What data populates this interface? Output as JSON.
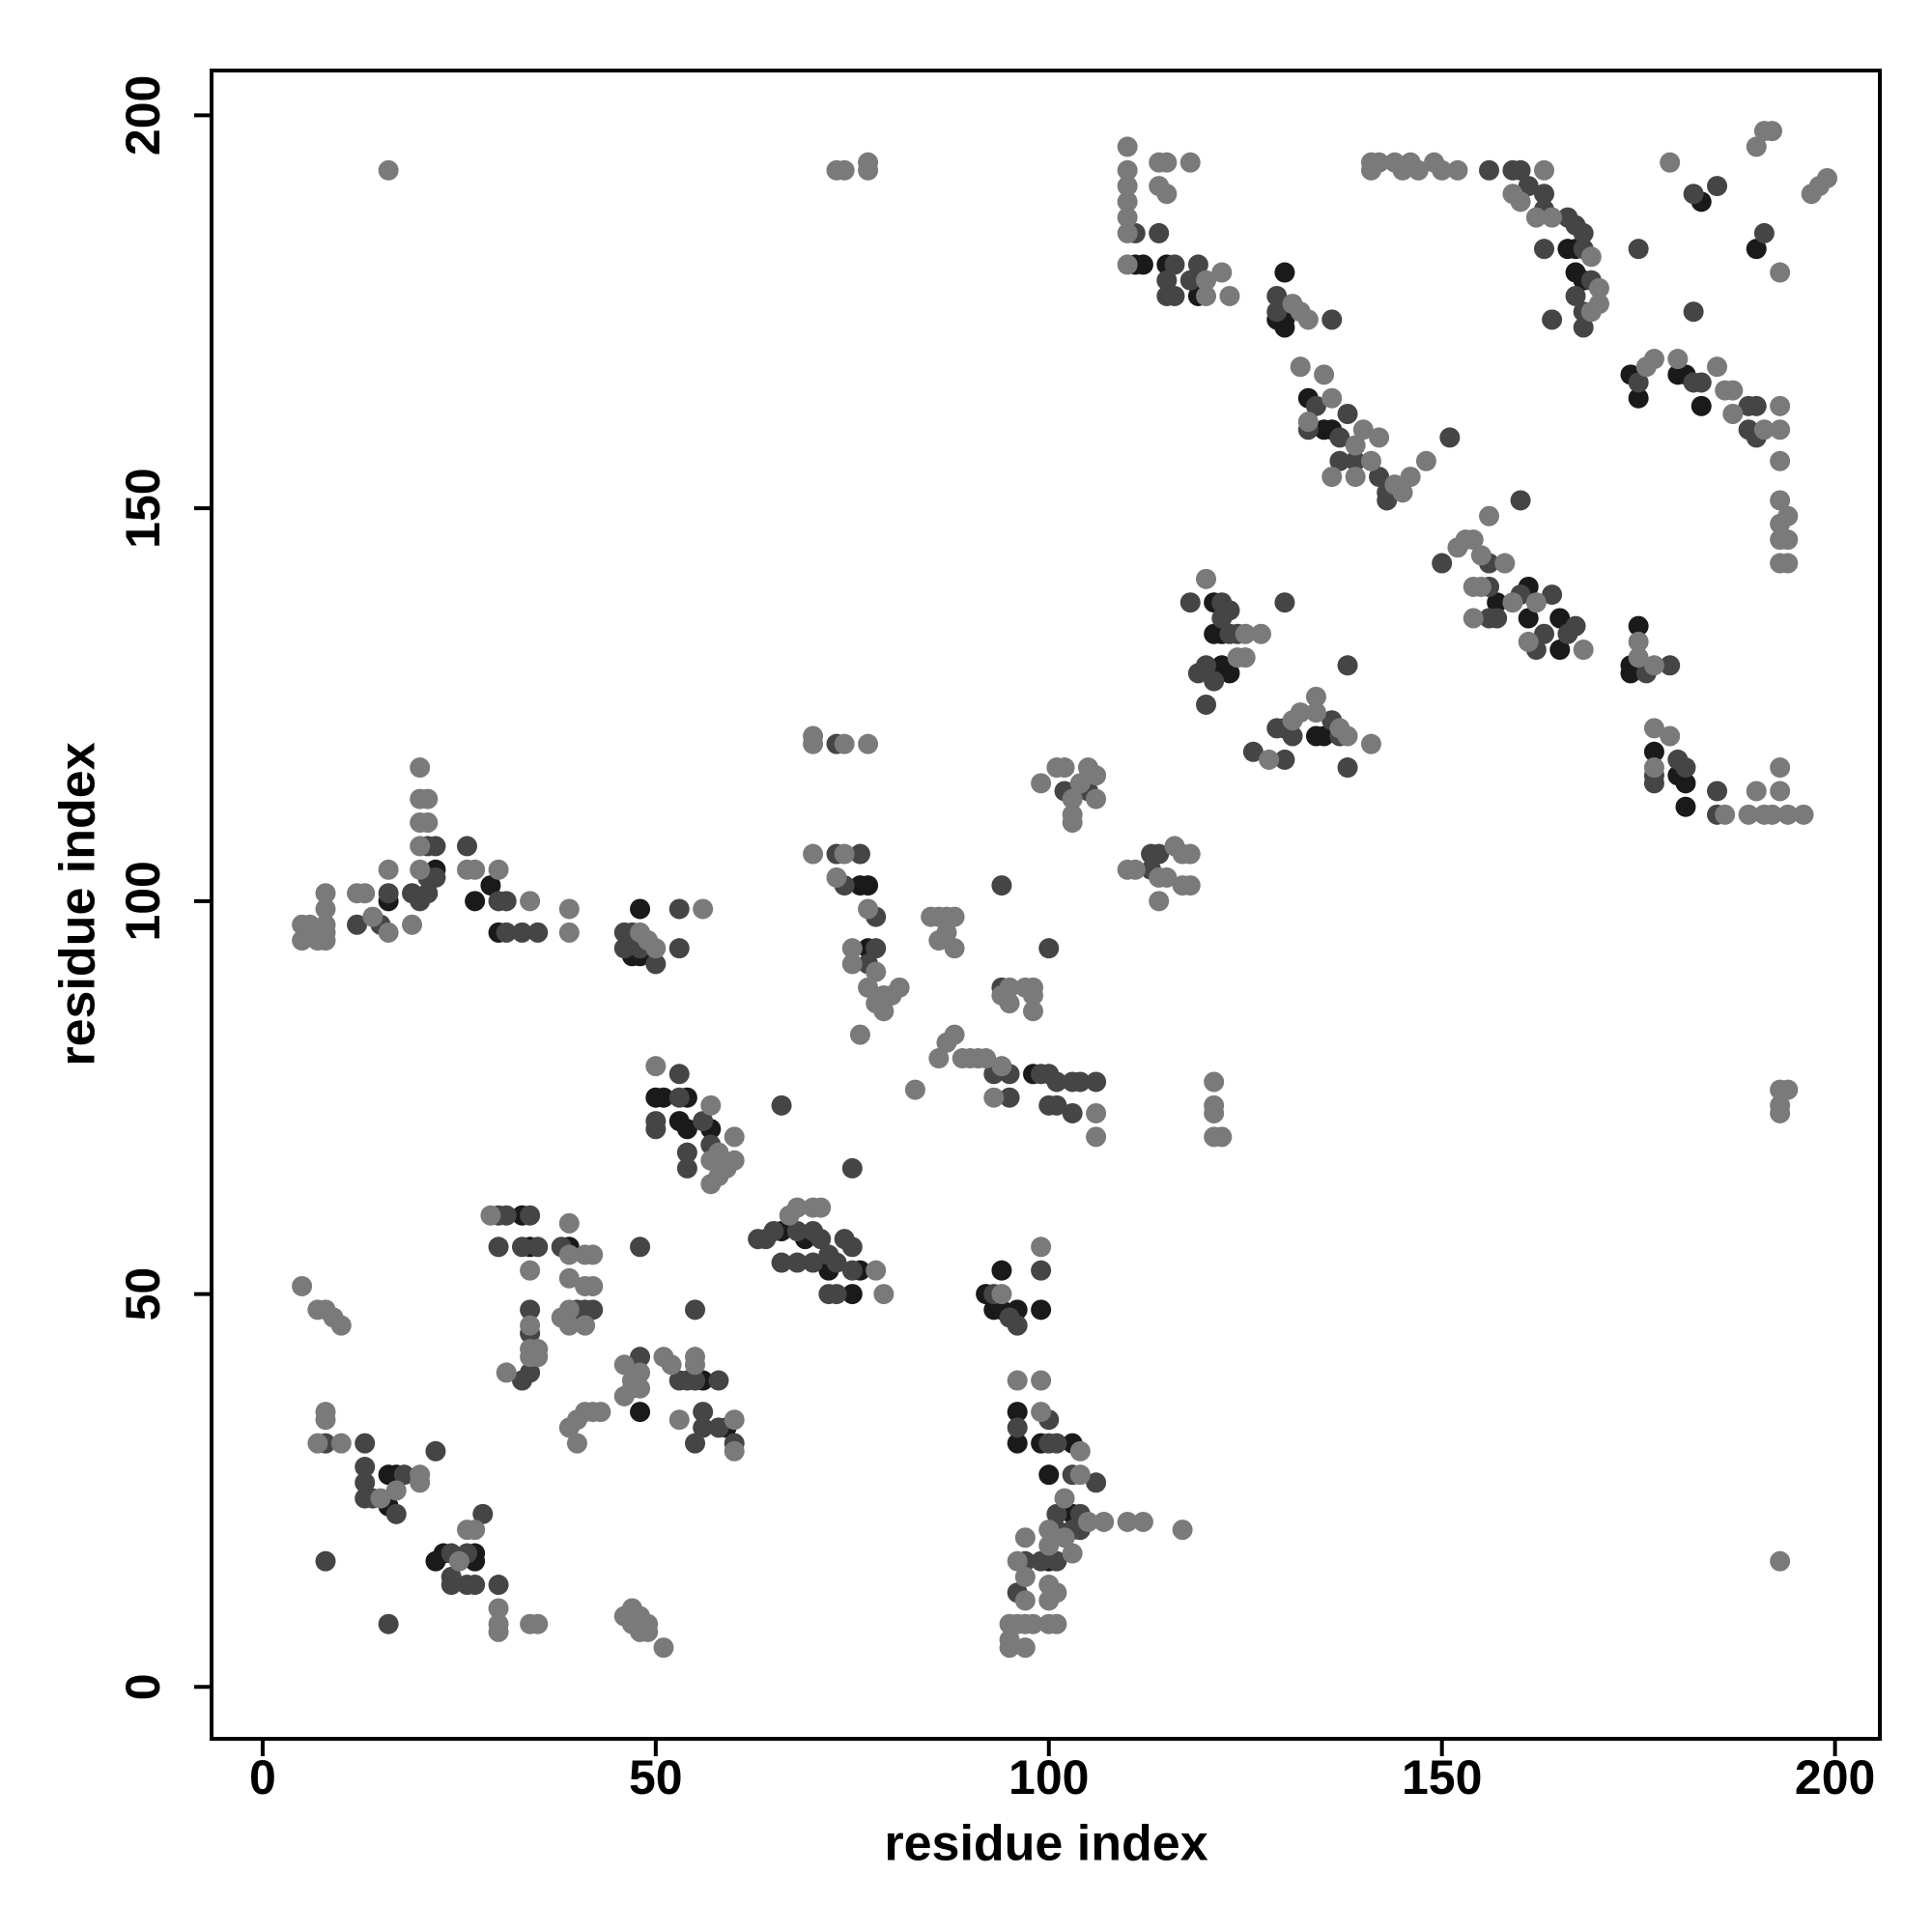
{
  "chart_data": {
    "type": "scatter",
    "x_label": "residue index",
    "y_label": "residue index",
    "xlim": [
      -6.5,
      205.7
    ],
    "ylim": [
      -6.6,
      205.7
    ],
    "xticks": [
      0,
      50,
      100,
      150,
      200
    ],
    "yticks": [
      0,
      50,
      100,
      150,
      200
    ],
    "grid": false,
    "series": [
      {
        "color": "#1a1a1a",
        "x": [
          111,
          112,
          115,
          119,
          130,
          129,
          130,
          130,
          133,
          135,
          136,
          166,
          167,
          167,
          168,
          183,
          190,
          174,
          175,
          180,
          181,
          183,
          157,
          161,
          161,
          165,
          165,
          174,
          175,
          174,
          177,
          180,
          181,
          181,
          121,
          121,
          122,
          122,
          123,
          130,
          134,
          135,
          76,
          77,
          77,
          98,
          50,
          51,
          53,
          54,
          54,
          57,
          66,
          69,
          72,
          76,
          75,
          92,
          93,
          94,
          96,
          94,
          99,
          96,
          96,
          99,
          103,
          100,
          103,
          100,
          22,
          29,
          27,
          30,
          16,
          47,
          48,
          48,
          33,
          34,
          39,
          48,
          56,
          59,
          16,
          17,
          16,
          22,
          23,
          27,
          27
        ],
        "values": [
          181,
          181,
          181,
          177,
          180,
          174,
          174,
          173,
          164,
          160,
          160,
          183,
          183,
          180,
          179,
          189,
          183,
          167,
          164,
          167,
          167,
          163,
          138,
          140,
          136,
          136,
          132,
          130,
          135,
          129,
          119,
          116,
          115,
          112,
          138,
          134,
          134,
          130,
          129,
          122,
          121,
          121,
          102,
          102,
          94,
          78,
          75,
          75,
          72,
          75,
          71,
          71,
          58,
          57,
          53,
          53,
          50,
          50,
          48,
          48,
          48,
          53,
          48,
          35,
          31,
          31,
          31,
          27,
          22,
          16,
          104,
          102,
          100,
          96,
          100,
          93,
          93,
          99,
          60,
          56,
          56,
          35,
          39,
          33,
          27,
          27,
          23,
          16,
          17,
          17,
          16
        ]
      },
      {
        "color": "#454545",
        "x": [
          111,
          114,
          116,
          115,
          116,
          115,
          118,
          119,
          129,
          129,
          136,
          133,
          134,
          137,
          137,
          138,
          139,
          142,
          143,
          143,
          151,
          156,
          159,
          160,
          161,
          163,
          163,
          166,
          167,
          168,
          168,
          169,
          167,
          168,
          168,
          163,
          164,
          175,
          182,
          185,
          191,
          182,
          175,
          182,
          183,
          189,
          190,
          189,
          190,
          150,
          156,
          156,
          160,
          163,
          164,
          166,
          167,
          157,
          156,
          160,
          162,
          176,
          179,
          177,
          177,
          180,
          181,
          185,
          185,
          118,
          122,
          122,
          123,
          123,
          124,
          120,
          121,
          119,
          120,
          130,
          126,
          129,
          130,
          131,
          136,
          137,
          138,
          138,
          102,
          105,
          113,
          113,
          114,
          73,
          76,
          74,
          78,
          78,
          77,
          73,
          94,
          94,
          100,
          93,
          95,
          99,
          100,
          101,
          103,
          104,
          106,
          95,
          100,
          101,
          103,
          50,
          50,
          53,
          53,
          54,
          54,
          56,
          57,
          66,
          75,
          63,
          64,
          65,
          68,
          70,
          71,
          72,
          73,
          74,
          75,
          75,
          72,
          73,
          66,
          68,
          70,
          93,
          95,
          96,
          99,
          96,
          100,
          100,
          101,
          103,
          106,
          104,
          101,
          101,
          103,
          104,
          97,
          99,
          101,
          96,
          21,
          22,
          21,
          19,
          20,
          21,
          22,
          26,
          30,
          31,
          31,
          33,
          35,
          16,
          15,
          12,
          46,
          47,
          46,
          48,
          50,
          53,
          53,
          30,
          31,
          34,
          30,
          33,
          35,
          38,
          40,
          41,
          42,
          34,
          34,
          34,
          33,
          48,
          53,
          54,
          55,
          56,
          56,
          55,
          58,
          60,
          58,
          55,
          48,
          48,
          8,
          13,
          13,
          13,
          13,
          14,
          18,
          17,
          22,
          8,
          24,
          24,
          24,
          26,
          28,
          26,
          27,
          30,
          16
        ],
        "values": [
          185,
          185,
          181,
          179,
          177,
          177,
          179,
          181,
          177,
          175,
          174,
          160,
          163,
          159,
          156,
          162,
          156,
          154,
          152,
          151,
          159,
          193,
          193,
          193,
          191,
          190,
          188,
          187,
          186,
          185,
          183,
          179,
          177,
          175,
          173,
          183,
          174,
          183,
          190,
          191,
          185,
          175,
          166,
          166,
          166,
          163,
          163,
          160,
          159,
          143,
          143,
          140,
          139,
          134,
          139,
          134,
          135,
          136,
          136,
          151,
          132,
          129,
          130,
          115,
          116,
          118,
          117,
          114,
          111,
          138,
          138,
          136,
          137,
          134,
          134,
          130,
          128,
          129,
          125,
          138,
          119,
          122,
          118,
          121,
          123,
          121,
          117,
          130,
          114,
          114,
          106,
          104,
          106,
          106,
          106,
          102,
          98,
          94,
          92,
          120,
          102,
          89,
          94,
          78,
          78,
          78,
          78,
          77,
          77,
          77,
          77,
          75,
          74,
          74,
          73,
          72,
          71,
          78,
          75,
          68,
          66,
          72,
          69,
          74,
          66,
          57,
          57,
          58,
          58,
          58,
          57,
          55,
          54,
          57,
          56,
          53,
          50,
          50,
          54,
          54,
          54,
          50,
          47,
          46,
          53,
          33,
          34,
          31,
          31,
          27,
          26,
          22,
          22,
          20,
          20,
          20,
          16,
          16,
          16,
          12,
          107,
          107,
          103,
          101,
          100,
          101,
          103,
          107,
          100,
          100,
          96,
          96,
          96,
          101,
          97,
          97,
          96,
          96,
          94,
          94,
          92,
          99,
          94,
          60,
          60,
          60,
          56,
          56,
          56,
          56,
          48,
          48,
          48,
          48,
          45,
          40,
          39,
          42,
          39,
          39,
          39,
          35,
          33,
          31,
          39,
          31,
          33,
          48,
          56,
          8,
          31,
          31,
          28,
          26,
          24,
          24,
          27,
          22,
          30,
          16,
          17,
          14,
          13,
          17,
          22,
          13,
          13,
          13,
          8
        ]
      },
      {
        "color": "#7a7a7a",
        "x": [
          16,
          73,
          74,
          77,
          77,
          110,
          110,
          110,
          110,
          110,
          110,
          110,
          114,
          115,
          114,
          115,
          118,
          120,
          120,
          122,
          123,
          131,
          132,
          133,
          132,
          133,
          135,
          136,
          139,
          140,
          136,
          139,
          141,
          142,
          144,
          145,
          146,
          148,
          141,
          142,
          141,
          144,
          145,
          146,
          147,
          149,
          150,
          152,
          163,
          159,
          160,
          162,
          164,
          169,
          170,
          169,
          170,
          179,
          190,
          191,
          192,
          197,
          198,
          199,
          193,
          176,
          177,
          180,
          186,
          187,
          187,
          191,
          193,
          193,
          193,
          193,
          193,
          194,
          193,
          194,
          193,
          194,
          185,
          152,
          153,
          154,
          155,
          154,
          156,
          158,
          159,
          162,
          168,
          161,
          154,
          155,
          175,
          175,
          177,
          177,
          177,
          179,
          186,
          189,
          190,
          191,
          192,
          193,
          193,
          194,
          196,
          193,
          194,
          193,
          193,
          193,
          120,
          125,
          127,
          124,
          125,
          128,
          131,
          132,
          134,
          134,
          138,
          141,
          137,
          99,
          101,
          102,
          103,
          103,
          103,
          104,
          105,
          106,
          106,
          110,
          111,
          114,
          115,
          116,
          117,
          117,
          118,
          118,
          114,
          70,
          74,
          73,
          77,
          75,
          75,
          78,
          77,
          79,
          78,
          79,
          80,
          81,
          76,
          70,
          70,
          74,
          77,
          85,
          86,
          87,
          88,
          86,
          87,
          88,
          95,
          94,
          95,
          97,
          98,
          98,
          98,
          86,
          87,
          88,
          89,
          90,
          91,
          92,
          94,
          93,
          106,
          106,
          83,
          121,
          121,
          121,
          121,
          122,
          50,
          57,
          57,
          57,
          58,
          58,
          59,
          60,
          60,
          67,
          68,
          70,
          71,
          78,
          79,
          94,
          99,
          96,
          99,
          99,
          104,
          104,
          102,
          100,
          100,
          102,
          105,
          107,
          110,
          112,
          117,
          97,
          96,
          103,
          97,
          100,
          101,
          100,
          97,
          95,
          96,
          97,
          98,
          100,
          101,
          95,
          95,
          97,
          20,
          20,
          21,
          20,
          21,
          20,
          20,
          26,
          27,
          30,
          34,
          39,
          39,
          19,
          16,
          16,
          13,
          12,
          8,
          8,
          8,
          8,
          7,
          7,
          6,
          5,
          5,
          8,
          14,
          48,
          49,
          50,
          56,
          29,
          34,
          39,
          39,
          41,
          42,
          39,
          41,
          42,
          39,
          38,
          39,
          41,
          34,
          35,
          34,
          35,
          31,
          40,
          41,
          42,
          43,
          39,
          40,
          34,
          46,
          47,
          48,
          47,
          48,
          46,
          51,
          52,
          55,
          55,
          53,
          60,
          60,
          47,
          48,
          49,
          48,
          49,
          51,
          46,
          47,
          5,
          7,
          8,
          9,
          10,
          8,
          8,
          7,
          10,
          15,
          17,
          20,
          20,
          25,
          26,
          27,
          30,
          30,
          30,
          34,
          35
        ],
        "values": [
          193,
          193,
          193,
          193,
          194,
          196,
          193,
          191,
          189,
          187,
          185,
          181,
          194,
          194,
          191,
          190,
          194,
          177,
          179,
          180,
          177,
          176,
          175,
          174,
          168,
          161,
          167,
          164,
          158,
          160,
          154,
          154,
          156,
          159,
          153,
          152,
          154,
          156,
          193,
          194,
          194,
          194,
          193,
          194,
          193,
          194,
          193,
          193,
          193,
          190,
          189,
          187,
          187,
          182,
          178,
          175,
          176,
          194,
          196,
          198,
          198,
          190,
          191,
          192,
          180,
          168,
          169,
          169,
          165,
          165,
          162,
          160,
          163,
          160,
          156,
          151,
          148,
          149,
          146,
          146,
          143,
          143,
          168,
          145,
          146,
          146,
          144,
          140,
          149,
          143,
          138,
          138,
          132,
          133,
          136,
          140,
          131,
          133,
          130,
          122,
          117,
          121,
          111,
          111,
          114,
          111,
          111,
          117,
          114,
          111,
          111,
          76,
          76,
          73,
          74,
          16,
          141,
          134,
          134,
          131,
          131,
          118,
          123,
          124,
          124,
          126,
          121,
          120,
          122,
          115,
          117,
          117,
          113,
          111,
          110,
          115,
          117,
          116,
          113,
          104,
          104,
          103,
          103,
          107,
          106,
          102,
          106,
          102,
          100,
          106,
          106,
          103,
          99,
          94,
          92,
          91,
          89,
          88,
          87,
          86,
          88,
          89,
          83,
          121,
          120,
          120,
          120,
          98,
          98,
          98,
          98,
          95,
          96,
          94,
          89,
          88,
          87,
          89,
          89,
          86,
          88,
          80,
          82,
          83,
          80,
          80,
          80,
          80,
          79,
          75,
          73,
          70,
          76,
          77,
          74,
          73,
          70,
          70,
          79,
          74,
          67,
          64,
          65,
          68,
          66,
          70,
          67,
          60,
          61,
          61,
          61,
          53,
          50,
          50,
          56,
          39,
          39,
          35,
          30,
          27,
          24,
          20,
          18,
          19,
          21,
          21,
          21,
          21,
          20,
          19,
          16,
          17,
          14,
          13,
          12,
          11,
          11,
          8,
          8,
          8,
          8,
          8,
          8,
          6,
          5,
          5,
          117,
          113,
          113,
          110,
          110,
          107,
          104,
          104,
          104,
          104,
          100,
          99,
          96,
          97,
          104,
          96,
          101,
          101,
          101,
          99,
          97,
          96,
          96,
          95,
          97,
          97,
          95,
          95,
          98,
          96,
          95,
          94,
          99,
          60,
          53,
          59,
          55,
          55,
          55,
          52,
          51,
          51,
          48,
          47,
          46,
          46,
          43,
          43,
          42,
          42,
          40,
          34,
          35,
          35,
          35,
          33,
          31,
          46,
          41,
          39,
          40,
          38,
          38,
          37,
          42,
          41,
          42,
          41,
          34,
          34,
          30,
          10,
          9,
          7,
          7,
          8,
          5,
          9,
          8,
          51,
          48,
          48,
          47,
          46,
          35,
          34,
          31,
          31,
          24,
          25,
          27,
          26,
          16,
          20,
          20,
          10,
          8,
          7,
          8,
          8
        ]
      }
    ]
  }
}
